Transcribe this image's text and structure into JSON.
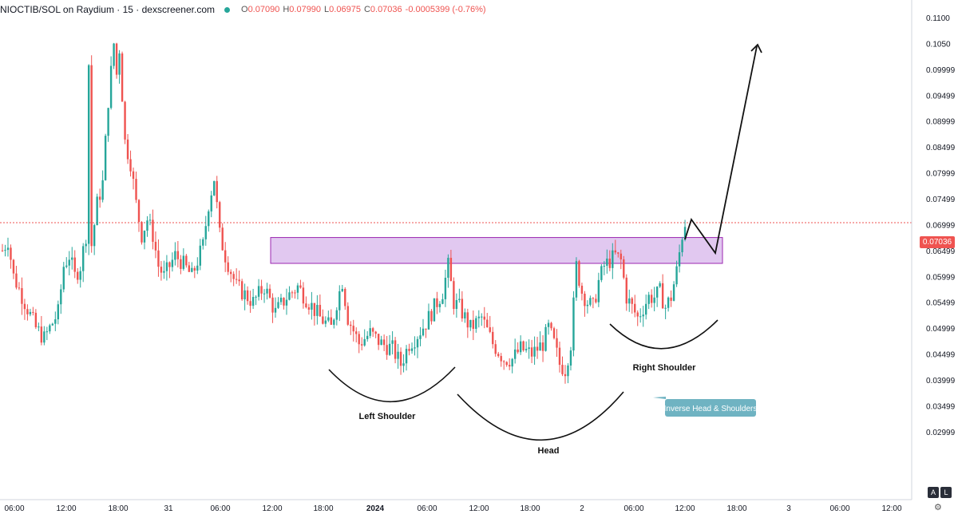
{
  "header": {
    "pair": "NIOCTIB/SOL on Raydium · 15 · dexscreener.com",
    "o_label": "O",
    "o_value": "0.07090",
    "h_label": "H",
    "h_value": "0.07990",
    "l_label": "L",
    "l_value": "0.06975",
    "c_label": "C",
    "c_value": "0.07036",
    "change": "-0.0005399 (-0.76%)"
  },
  "colors": {
    "up": "#26a69a",
    "down": "#ef5350",
    "zone_fill": "#e1c8f0",
    "zone_stroke": "#9c27b0",
    "callout": "#6fb3c2"
  },
  "price_tag": "0.07036",
  "buttons": {
    "auto": "A",
    "log": "L"
  },
  "icons": {
    "settings": "gear-icon"
  },
  "annotations": {
    "left_shoulder": "Left Shoulder",
    "head": "Head",
    "right_shoulder": "Right Shoulder",
    "callout": "Inverse Head & Shoulders"
  },
  "chart_data": {
    "type": "candlestick",
    "y_ticks": [
      "0.1100",
      "0.1050",
      "0.09999",
      "0.09499",
      "0.08999",
      "0.08499",
      "0.07999",
      "0.07499",
      "0.06999",
      "0.06499",
      "0.05999",
      "0.05499",
      "0.04999",
      "0.04499",
      "0.03999",
      "0.03499",
      "0.02999"
    ],
    "x_ticks": [
      "06:00",
      "12:00",
      "18:00",
      "31",
      "06:00",
      "12:00",
      "18:00",
      "2024",
      "06:00",
      "12:00",
      "18:00",
      "2",
      "06:00",
      "12:00",
      "18:00",
      "3",
      "06:00",
      "12:00"
    ],
    "last_price": 0.07036,
    "ylim": [
      0.0255,
      0.1125
    ],
    "resistance_zone": [
      0.0625,
      0.0675
    ],
    "anchors": [
      [
        0,
        0.065
      ],
      [
        2,
        0.067
      ],
      [
        4,
        0.06
      ],
      [
        8,
        0.055
      ],
      [
        12,
        0.05
      ],
      [
        15,
        0.048
      ],
      [
        18,
        0.051
      ],
      [
        20,
        0.053
      ],
      [
        22,
        0.062
      ],
      [
        24,
        0.064
      ],
      [
        26,
        0.06
      ],
      [
        28,
        0.062
      ],
      [
        30,
        0.068
      ],
      [
        31,
        0.101
      ],
      [
        32,
        0.066
      ],
      [
        34,
        0.074
      ],
      [
        36,
        0.078
      ],
      [
        38,
        0.094
      ],
      [
        40,
        0.105
      ],
      [
        41,
        0.099
      ],
      [
        42,
        0.104
      ],
      [
        44,
        0.086
      ],
      [
        46,
        0.082
      ],
      [
        48,
        0.074
      ],
      [
        50,
        0.068
      ],
      [
        52,
        0.071
      ],
      [
        54,
        0.068
      ],
      [
        56,
        0.062
      ],
      [
        58,
        0.06
      ],
      [
        60,
        0.062
      ],
      [
        62,
        0.064
      ],
      [
        64,
        0.063
      ],
      [
        68,
        0.06
      ],
      [
        72,
        0.066
      ],
      [
        74,
        0.074
      ],
      [
        76,
        0.079
      ],
      [
        78,
        0.068
      ],
      [
        80,
        0.064
      ],
      [
        84,
        0.058
      ],
      [
        86,
        0.057
      ],
      [
        90,
        0.055
      ],
      [
        94,
        0.058
      ],
      [
        98,
        0.053
      ],
      [
        102,
        0.056
      ],
      [
        106,
        0.058
      ],
      [
        110,
        0.055
      ],
      [
        114,
        0.052
      ],
      [
        118,
        0.05
      ],
      [
        120,
        0.055
      ],
      [
        122,
        0.059
      ],
      [
        124,
        0.052
      ],
      [
        128,
        0.047
      ],
      [
        132,
        0.049
      ],
      [
        136,
        0.047
      ],
      [
        140,
        0.046
      ],
      [
        143,
        0.043
      ],
      [
        146,
        0.047
      ],
      [
        148,
        0.048
      ],
      [
        152,
        0.051
      ],
      [
        156,
        0.055
      ],
      [
        158,
        0.057
      ],
      [
        160,
        0.062
      ],
      [
        162,
        0.055
      ],
      [
        164,
        0.054
      ],
      [
        168,
        0.05
      ],
      [
        172,
        0.052
      ],
      [
        176,
        0.047
      ],
      [
        180,
        0.044
      ],
      [
        183,
        0.044
      ],
      [
        186,
        0.046
      ],
      [
        190,
        0.045
      ],
      [
        194,
        0.047
      ],
      [
        196,
        0.05
      ],
      [
        198,
        0.047
      ],
      [
        200,
        0.043
      ],
      [
        202,
        0.042
      ],
      [
        204,
        0.047
      ],
      [
        206,
        0.062
      ],
      [
        208,
        0.057
      ],
      [
        210,
        0.055
      ],
      [
        212,
        0.054
      ],
      [
        214,
        0.059
      ],
      [
        216,
        0.062
      ],
      [
        218,
        0.063
      ],
      [
        220,
        0.064
      ],
      [
        222,
        0.063
      ],
      [
        224,
        0.056
      ],
      [
        226,
        0.054
      ],
      [
        228,
        0.052
      ],
      [
        230,
        0.054
      ],
      [
        232,
        0.056
      ],
      [
        234,
        0.056
      ],
      [
        236,
        0.057
      ],
      [
        238,
        0.054
      ],
      [
        240,
        0.056
      ],
      [
        242,
        0.061
      ],
      [
        244,
        0.068
      ],
      [
        245,
        0.0704
      ]
    ],
    "projection": [
      [
        0.07036,
        0
      ],
      [
        0.0745,
        1
      ],
      [
        0.0695,
        3
      ],
      [
        0.1065,
        9
      ]
    ]
  }
}
